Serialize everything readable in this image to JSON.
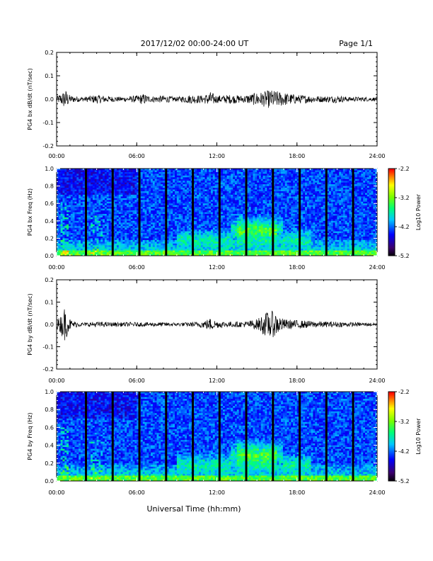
{
  "header": {
    "date_range": "2017/12/02  00:00-24:00 UT",
    "page": "Page 1/1"
  },
  "footer": {
    "xlabel": "Universal Time (hh:mm)"
  },
  "chart_data": [
    {
      "type": "line",
      "ylabel": "PG4 bx dB/dt (nT/sec)",
      "xlim": [
        0,
        24
      ],
      "ylim": [
        -0.2,
        0.2
      ],
      "yticks": [
        "0.2",
        "0.1",
        "0.0",
        "-0.1",
        "-0.2"
      ],
      "xticks": [
        "00:00",
        "06:00",
        "12:00",
        "18:00",
        "24:00"
      ],
      "series": [
        {
          "x": [
            0,
            0.5,
            0.6,
            1,
            2,
            3,
            4,
            5,
            6,
            6.5,
            7,
            8,
            9,
            10,
            11,
            11.5,
            12,
            13,
            14,
            15,
            15.5,
            16,
            16.5,
            17,
            18,
            19,
            20,
            21,
            22,
            23,
            24
          ],
          "amplitude": [
            0.008,
            0.02,
            0.03,
            0.01,
            0.006,
            0.012,
            0.008,
            0.006,
            0.01,
            0.015,
            0.008,
            0.01,
            0.006,
            0.012,
            0.01,
            0.02,
            0.01,
            0.012,
            0.01,
            0.018,
            0.02,
            0.025,
            0.022,
            0.018,
            0.012,
            0.01,
            0.008,
            0.01,
            0.006,
            0.006,
            0.005
          ]
        }
      ]
    },
    {
      "type": "heatmap",
      "ylabel": "PG4 bx Freq (Hz)",
      "xlim": [
        0,
        24
      ],
      "ylim": [
        0,
        1.0
      ],
      "yticks": [
        "1.0",
        "0.8",
        "0.6",
        "0.4",
        "0.2",
        "0.0"
      ],
      "xticks": [
        "00:00",
        "06:00",
        "12:00",
        "18:00",
        "24:00"
      ],
      "colorbar": {
        "label": "Log10 Power",
        "ticks": [
          "-2.2",
          "-3.2",
          "-4.2",
          "-5.2"
        ],
        "range": [
          -5.2,
          -2.2
        ]
      },
      "gap_hours": [
        2.2,
        4.2,
        6.2,
        8.2,
        10.2,
        12.2,
        14.2,
        16.2,
        18.2,
        20.2,
        22.2
      ]
    },
    {
      "type": "line",
      "ylabel": "PG4 by dB/dt (nT/sec)",
      "xlim": [
        0,
        24
      ],
      "ylim": [
        -0.2,
        0.2
      ],
      "yticks": [
        "0.2",
        "0.1",
        "0.0",
        "-0.1",
        "-0.2"
      ],
      "xticks": [
        "00:00",
        "06:00",
        "12:00",
        "18:00",
        "24:00"
      ],
      "series": [
        {
          "x": [
            0,
            0.3,
            0.6,
            0.9,
            1.2,
            2,
            3,
            4,
            5,
            6,
            7,
            8,
            9,
            10,
            11,
            11.5,
            12,
            13,
            14,
            15,
            15.5,
            16,
            16.5,
            17,
            18,
            19,
            20,
            21,
            22,
            23,
            24
          ],
          "amplitude": [
            0.01,
            0.025,
            0.05,
            0.02,
            0.01,
            0.005,
            0.008,
            0.006,
            0.006,
            0.006,
            0.006,
            0.006,
            0.005,
            0.006,
            0.01,
            0.018,
            0.01,
            0.008,
            0.008,
            0.015,
            0.03,
            0.04,
            0.03,
            0.015,
            0.012,
            0.01,
            0.008,
            0.008,
            0.006,
            0.005,
            0.005
          ]
        }
      ]
    },
    {
      "type": "heatmap",
      "ylabel": "PG4 by Freq (Hz)",
      "xlim": [
        0,
        24
      ],
      "ylim": [
        0,
        1.0
      ],
      "yticks": [
        "1.0",
        "0.8",
        "0.6",
        "0.4",
        "0.2",
        "0.0"
      ],
      "xticks": [
        "00:00",
        "06:00",
        "12:00",
        "18:00",
        "24:00"
      ],
      "colorbar": {
        "label": "Log10 Power",
        "ticks": [
          "-2.2",
          "-3.2",
          "-4.2",
          "-5.2"
        ],
        "range": [
          -5.2,
          -2.2
        ]
      },
      "gap_hours": [
        2.2,
        4.2,
        6.2,
        8.2,
        10.2,
        12.2,
        14.2,
        16.2,
        18.2,
        20.2,
        22.2
      ]
    }
  ]
}
